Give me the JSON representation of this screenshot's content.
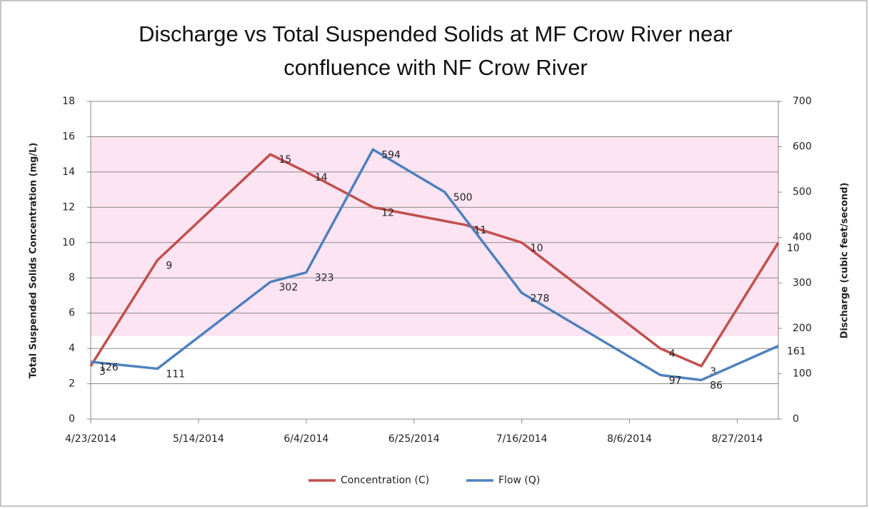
{
  "chart_data": {
    "type": "line",
    "title": "Discharge vs Total Suspended Solids at MF Crow River near confluence with NF Crow River",
    "ylabel": "Total Suspended Solids Concentration (mg/L)",
    "y2label": "Discharge (cubic feet/second)",
    "xlim": [
      "4/23/2014",
      "9/4/2014"
    ],
    "xticks": [
      "4/23/2014",
      "5/14/2014",
      "6/4/2014",
      "6/25/2014",
      "7/16/2014",
      "8/6/2014",
      "8/27/2014"
    ],
    "ylim": [
      0,
      18
    ],
    "yticks": [
      0,
      2,
      4,
      6,
      8,
      10,
      12,
      14,
      16,
      18
    ],
    "y2lim": [
      0,
      700
    ],
    "y2ticks": [
      0,
      100,
      200,
      300,
      400,
      500,
      600,
      700
    ],
    "grid": true,
    "shaded_range": [
      4.7,
      16
    ],
    "shaded_color": "#fde4f2",
    "series": [
      {
        "name": "Concentration (C)",
        "color": "#c0504d",
        "x": [
          "4/23/2014",
          "5/6/2014",
          "5/28/2014",
          "6/4/2014",
          "6/17/2014",
          "7/5/2014",
          "7/16/2014",
          "8/12/2014",
          "8/20/2014",
          "9/4/2014"
        ],
        "values": [
          3,
          9,
          15,
          14,
          12,
          11,
          10,
          4,
          3,
          10
        ]
      },
      {
        "name": "Flow (Q)",
        "color": "#4f81bd",
        "axis": "y2",
        "x": [
          "4/23/2014",
          "5/6/2014",
          "5/28/2014",
          "6/4/2014",
          "6/17/2014",
          "7/1/2014",
          "7/16/2014",
          "8/12/2014",
          "8/20/2014",
          "9/4/2014"
        ],
        "values": [
          126,
          111,
          302,
          323,
          594,
          500,
          278,
          97,
          86,
          161
        ]
      }
    ],
    "legend": "bottom"
  }
}
